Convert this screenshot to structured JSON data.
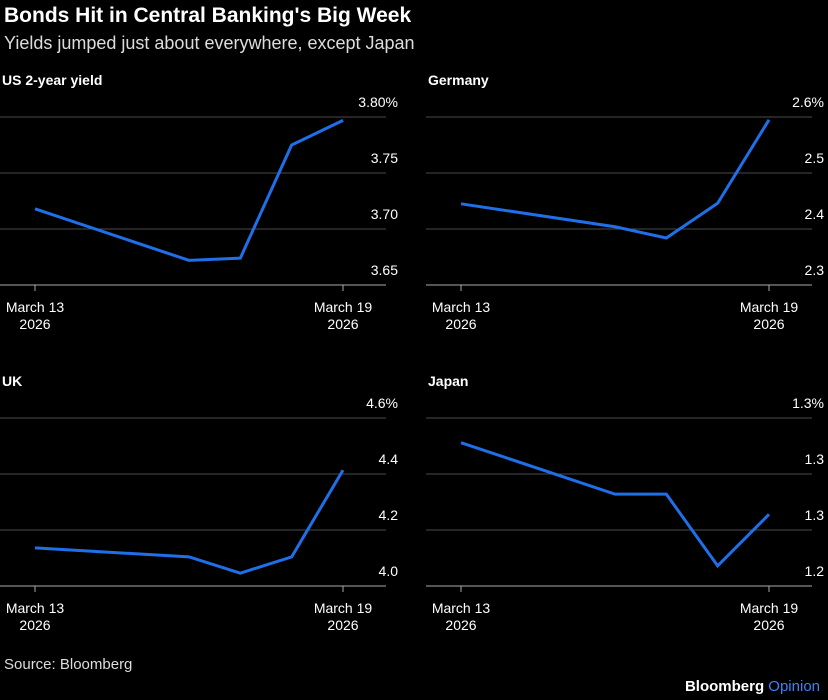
{
  "title": "Bonds Hit in Central Banking's Big Week",
  "subtitle": "Yields jumped just about everywhere, except Japan",
  "source": "Source: Bloomberg",
  "brand": [
    "Bloomberg",
    "Opinion"
  ],
  "chart_data": [
    {
      "type": "line",
      "title": "US 2-year yield",
      "color": "#1f6fe8",
      "x": [
        "2026-03-13",
        "2026-03-16",
        "2026-03-17",
        "2026-03-18",
        "2026-03-19"
      ],
      "values": [
        3.718,
        3.672,
        3.674,
        3.775,
        3.797
      ],
      "xlim": [
        "2026-03-13",
        "2026-03-19"
      ],
      "xticks": [
        {
          "value": "2026-03-13",
          "label": "March 13 2026"
        },
        {
          "value": "2026-03-19",
          "label": "March 19 2026"
        }
      ],
      "ylim": [
        3.65,
        3.8
      ],
      "yticks": [
        3.65,
        {
          "value": 3.7,
          "label": "3.70"
        },
        3.75,
        {
          "value": 3.8,
          "label": "3.80%"
        }
      ],
      "grid": true
    },
    {
      "type": "line",
      "title": "Germany",
      "color": "#1f6fe8",
      "x": [
        "2026-03-13",
        "2026-03-16",
        "2026-03-17",
        "2026-03-18",
        "2026-03-19"
      ],
      "values": [
        2.445,
        2.404,
        2.384,
        2.446,
        2.595
      ],
      "xlim": [
        "2026-03-13",
        "2026-03-19"
      ],
      "xticks": [
        {
          "value": "2026-03-13",
          "label": "March 13 2026"
        },
        {
          "value": "2026-03-19",
          "label": "March 19 2026"
        }
      ],
      "ylim": [
        2.3,
        2.6
      ],
      "yticks": [
        2.3,
        2.4,
        2.5,
        {
          "value": 2.6,
          "label": "2.6%"
        }
      ],
      "grid": true
    },
    {
      "type": "line",
      "title": "UK",
      "color": "#1f6fe8",
      "x": [
        "2026-03-13",
        "2026-03-16",
        "2026-03-17",
        "2026-03-18",
        "2026-03-19"
      ],
      "values": [
        4.136,
        4.104,
        4.046,
        4.104,
        4.414
      ],
      "xlim": [
        "2026-03-13",
        "2026-03-19"
      ],
      "xticks": [
        {
          "value": "2026-03-13",
          "label": "March 13 2026"
        },
        {
          "value": "2026-03-19",
          "label": "March 19 2026"
        }
      ],
      "ylim": [
        4.0,
        4.6
      ],
      "yticks": [
        {
          "value": 4.0,
          "label": "4.0"
        },
        4.2,
        4.4,
        {
          "value": 4.6,
          "label": "4.6%"
        }
      ],
      "grid": true
    },
    {
      "type": "line",
      "title": "Japan",
      "color": "#1f6fe8",
      "x": [
        "2026-03-13",
        "2026-03-16",
        "2026-03-17",
        "2026-03-18",
        "2026-03-19"
      ],
      "values": [
        1.289,
        1.266,
        1.266,
        1.234,
        1.257
      ],
      "xlim": [
        "2026-03-13",
        "2026-03-19"
      ],
      "xticks": [
        {
          "value": "2026-03-13",
          "label": "March 13 2026"
        },
        {
          "value": "2026-03-19",
          "label": "March 19 2026"
        }
      ],
      "ylim": [
        1.225,
        1.3
      ],
      "yticks": [
        {
          "value": 1.225,
          "label": "1.2"
        },
        {
          "value": 1.25,
          "label": "1.3"
        },
        {
          "value": 1.275,
          "label": "1.3"
        },
        {
          "value": 1.3,
          "label": "1.3%"
        }
      ],
      "grid": true
    }
  ]
}
